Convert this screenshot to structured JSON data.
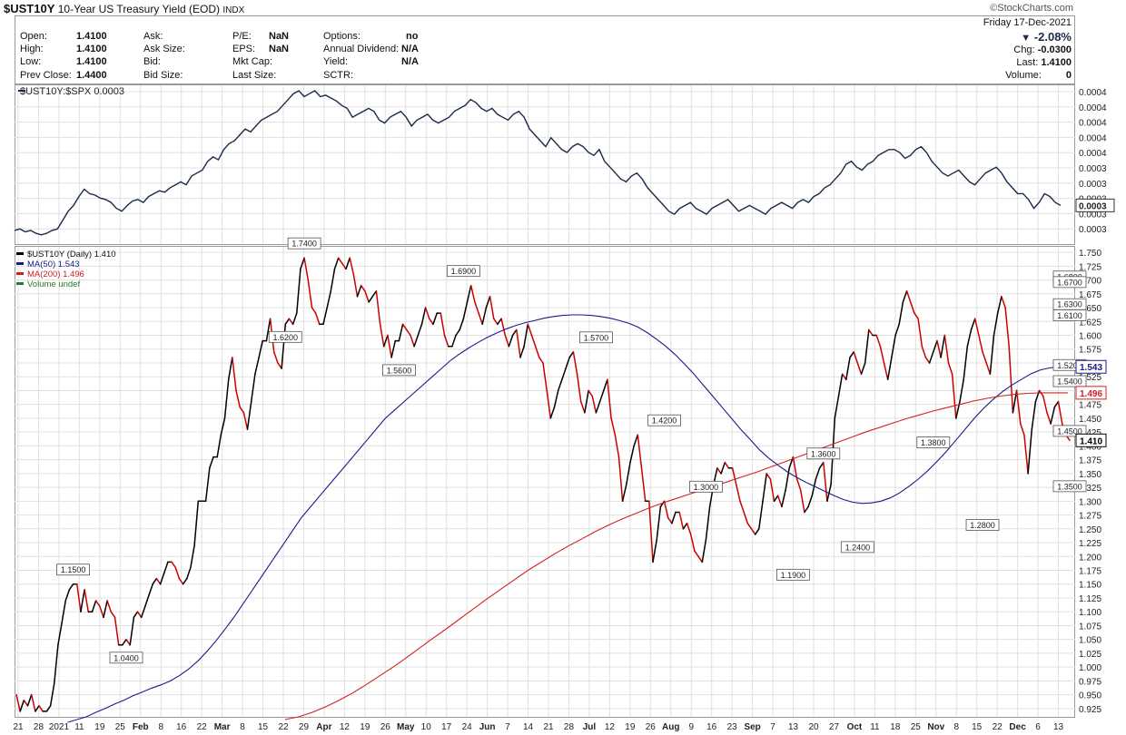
{
  "header": {
    "symbol": "$UST10Y",
    "name": "10-Year US Treasury Yield (EOD)",
    "exchange": "INDX",
    "brand": "©StockCharts.com",
    "date": "Friday  17-Dec-2021",
    "change_pct": "-2.08%",
    "chg_label": "Chg:",
    "chg_value": "-0.0300",
    "last_label": "Last:",
    "last_value": "1.4100",
    "volume_label": "Volume:",
    "volume_value": "0"
  },
  "quote": {
    "open_label": "Open:",
    "open": "1.4100",
    "high_label": "High:",
    "high": "1.4100",
    "low_label": "Low:",
    "low": "1.4100",
    "prev_label": "Prev Close:",
    "prev": "1.4400",
    "ask_label": "Ask:",
    "ask": "",
    "asksize_label": "Ask Size:",
    "asksize": "",
    "bid_label": "Bid:",
    "bid": "",
    "bidsize_label": "Bid Size:",
    "bidsize": "",
    "pe_label": "P/E:",
    "pe": "NaN",
    "eps_label": "EPS:",
    "eps": "NaN",
    "mktcap_label": "Mkt Cap:",
    "mktcap": "",
    "lastsize_label": "Last Size:",
    "lastsize": "",
    "options_label": "Options:",
    "options": "no",
    "div_label": "Annual Dividend:",
    "div": "N/A",
    "yield_label": "Yield:",
    "yield": "N/A",
    "sctr_label": "SCTR:",
    "sctr": ""
  },
  "colors": {
    "up": "#000000",
    "down": "#cc0000",
    "ma50": "#1a1a8c",
    "ma200": "#d42020",
    "ratio": "#1a2a4a",
    "grid": "#e0e0e0"
  },
  "chart_data": [
    {
      "type": "line",
      "title": "$UST10Y:$SPX 0.0003",
      "ytick_labels": [
        "0.0004",
        "0.0004",
        "0.0004",
        "0.0004",
        "0.0004",
        "0.0003",
        "0.0003",
        "0.0003",
        "0.0003",
        "0.0003"
      ],
      "last_label": "0.0003",
      "shape": [
        0.05,
        0.06,
        0.04,
        0.05,
        0.03,
        0.02,
        0.03,
        0.05,
        0.06,
        0.12,
        0.18,
        0.22,
        0.28,
        0.33,
        0.3,
        0.29,
        0.27,
        0.26,
        0.24,
        0.2,
        0.18,
        0.22,
        0.25,
        0.26,
        0.24,
        0.28,
        0.3,
        0.32,
        0.31,
        0.34,
        0.36,
        0.38,
        0.36,
        0.42,
        0.44,
        0.46,
        0.52,
        0.55,
        0.53,
        0.6,
        0.64,
        0.66,
        0.7,
        0.74,
        0.72,
        0.76,
        0.8,
        0.82,
        0.84,
        0.86,
        0.9,
        0.94,
        0.98,
        1.0,
        0.96,
        0.98,
        1.0,
        0.96,
        0.97,
        0.95,
        0.93,
        0.9,
        0.88,
        0.82,
        0.84,
        0.86,
        0.88,
        0.86,
        0.8,
        0.78,
        0.82,
        0.84,
        0.86,
        0.82,
        0.76,
        0.8,
        0.82,
        0.84,
        0.8,
        0.78,
        0.8,
        0.82,
        0.86,
        0.88,
        0.9,
        0.94,
        0.92,
        0.88,
        0.86,
        0.88,
        0.84,
        0.82,
        0.8,
        0.84,
        0.86,
        0.82,
        0.74,
        0.7,
        0.66,
        0.62,
        0.68,
        0.64,
        0.6,
        0.58,
        0.62,
        0.64,
        0.62,
        0.58,
        0.56,
        0.6,
        0.52,
        0.48,
        0.44,
        0.4,
        0.38,
        0.42,
        0.44,
        0.4,
        0.34,
        0.3,
        0.26,
        0.22,
        0.18,
        0.16,
        0.2,
        0.22,
        0.24,
        0.2,
        0.18,
        0.16,
        0.2,
        0.22,
        0.24,
        0.26,
        0.22,
        0.18,
        0.2,
        0.22,
        0.2,
        0.18,
        0.16,
        0.2,
        0.22,
        0.24,
        0.22,
        0.2,
        0.24,
        0.26,
        0.24,
        0.28,
        0.3,
        0.34,
        0.36,
        0.4,
        0.44,
        0.5,
        0.52,
        0.48,
        0.46,
        0.5,
        0.52,
        0.56,
        0.58,
        0.6,
        0.6,
        0.58,
        0.54,
        0.56,
        0.6,
        0.62,
        0.58,
        0.52,
        0.48,
        0.44,
        0.42,
        0.44,
        0.46,
        0.42,
        0.38,
        0.36,
        0.4,
        0.44,
        0.46,
        0.48,
        0.44,
        0.38,
        0.34,
        0.3,
        0.3,
        0.26,
        0.2,
        0.24,
        0.3,
        0.28,
        0.24,
        0.22
      ],
      "xtick_labels": [
        "21",
        "28",
        "2021",
        "11",
        "19",
        "25",
        "Feb",
        "8",
        "16",
        "22",
        "Mar",
        "8",
        "15",
        "22",
        "29",
        "Apr",
        "12",
        "19",
        "26",
        "May",
        "10",
        "17",
        "24",
        "Jun",
        "7",
        "14",
        "21",
        "28",
        "Jul",
        "12",
        "19",
        "26",
        "Aug",
        "9",
        "16",
        "23",
        "Sep",
        "7",
        "13",
        "20",
        "27",
        "Oct",
        "11",
        "18",
        "25",
        "Nov",
        "8",
        "15",
        "22",
        "Dec",
        "6",
        "13"
      ]
    },
    {
      "type": "line",
      "title": "$UST10Y (Daily) 1.410",
      "ylim": [
        0.91,
        1.76
      ],
      "ytick_labels": [
        "1.750",
        "1.725",
        "1.700",
        "1.675",
        "1.650",
        "1.625",
        "1.600",
        "1.575",
        "1.550",
        "1.525",
        "1.500",
        "1.475",
        "1.450",
        "1.425",
        "1.400",
        "1.375",
        "1.350",
        "1.325",
        "1.300",
        "1.275",
        "1.250",
        "1.225",
        "1.200",
        "1.175",
        "1.150",
        "1.125",
        "1.100",
        "1.075",
        "1.050",
        "1.025",
        "1.000",
        "0.975",
        "0.950",
        "0.925"
      ],
      "yticks": [
        1.75,
        1.725,
        1.7,
        1.675,
        1.65,
        1.625,
        1.6,
        1.575,
        1.55,
        1.525,
        1.5,
        1.475,
        1.45,
        1.425,
        1.4,
        1.375,
        1.35,
        1.325,
        1.3,
        1.275,
        1.25,
        1.225,
        1.2,
        1.175,
        1.15,
        1.125,
        1.1,
        1.075,
        1.05,
        1.025,
        1.0,
        0.975,
        0.95,
        0.925
      ],
      "legend": [
        {
          "label": "$UST10Y (Daily) 1.410",
          "color": "#000000"
        },
        {
          "label": "MA(50) 1.543",
          "color": "#1a1a8c"
        },
        {
          "label": "MA(200) 1.496",
          "color": "#d42020"
        },
        {
          "label": "Volume undef",
          "color": "#2a7a2a"
        }
      ],
      "series": [
        {
          "name": "$UST10Y",
          "values": [
            0.95,
            0.92,
            0.94,
            0.93,
            0.95,
            0.92,
            0.93,
            0.92,
            0.92,
            0.93,
            0.97,
            1.04,
            1.08,
            1.12,
            1.14,
            1.15,
            1.15,
            1.1,
            1.14,
            1.1,
            1.1,
            1.12,
            1.11,
            1.09,
            1.12,
            1.1,
            1.09,
            1.04,
            1.04,
            1.05,
            1.04,
            1.09,
            1.1,
            1.09,
            1.11,
            1.13,
            1.15,
            1.16,
            1.15,
            1.17,
            1.19,
            1.19,
            1.18,
            1.16,
            1.15,
            1.16,
            1.18,
            1.22,
            1.3,
            1.3,
            1.3,
            1.36,
            1.38,
            1.38,
            1.42,
            1.45,
            1.52,
            1.56,
            1.5,
            1.47,
            1.46,
            1.43,
            1.48,
            1.53,
            1.56,
            1.59,
            1.59,
            1.63,
            1.57,
            1.55,
            1.54,
            1.62,
            1.63,
            1.62,
            1.64,
            1.72,
            1.74,
            1.7,
            1.65,
            1.64,
            1.62,
            1.62,
            1.65,
            1.68,
            1.72,
            1.74,
            1.73,
            1.72,
            1.74,
            1.71,
            1.67,
            1.69,
            1.68,
            1.66,
            1.67,
            1.68,
            1.62,
            1.58,
            1.6,
            1.56,
            1.59,
            1.59,
            1.62,
            1.61,
            1.6,
            1.58,
            1.6,
            1.62,
            1.65,
            1.63,
            1.62,
            1.64,
            1.64,
            1.6,
            1.58,
            1.58,
            1.6,
            1.61,
            1.63,
            1.66,
            1.69,
            1.66,
            1.64,
            1.62,
            1.65,
            1.67,
            1.63,
            1.62,
            1.63,
            1.6,
            1.58,
            1.6,
            1.61,
            1.56,
            1.58,
            1.62,
            1.6,
            1.58,
            1.56,
            1.55,
            1.5,
            1.45,
            1.47,
            1.5,
            1.52,
            1.54,
            1.56,
            1.57,
            1.53,
            1.48,
            1.46,
            1.5,
            1.49,
            1.46,
            1.48,
            1.5,
            1.52,
            1.45,
            1.42,
            1.38,
            1.3,
            1.33,
            1.37,
            1.4,
            1.42,
            1.36,
            1.3,
            1.3,
            1.19,
            1.23,
            1.29,
            1.3,
            1.27,
            1.26,
            1.28,
            1.28,
            1.25,
            1.26,
            1.24,
            1.21,
            1.2,
            1.19,
            1.23,
            1.29,
            1.33,
            1.36,
            1.35,
            1.37,
            1.36,
            1.36,
            1.33,
            1.3,
            1.28,
            1.26,
            1.25,
            1.24,
            1.25,
            1.3,
            1.35,
            1.34,
            1.3,
            1.31,
            1.29,
            1.32,
            1.36,
            1.38,
            1.34,
            1.32,
            1.28,
            1.29,
            1.31,
            1.34,
            1.36,
            1.37,
            1.3,
            1.33,
            1.45,
            1.49,
            1.53,
            1.52,
            1.56,
            1.57,
            1.55,
            1.53,
            1.55,
            1.61,
            1.6,
            1.6,
            1.58,
            1.55,
            1.52,
            1.56,
            1.6,
            1.62,
            1.66,
            1.68,
            1.66,
            1.64,
            1.63,
            1.58,
            1.56,
            1.55,
            1.57,
            1.59,
            1.56,
            1.6,
            1.55,
            1.53,
            1.45,
            1.48,
            1.52,
            1.58,
            1.61,
            1.63,
            1.6,
            1.57,
            1.55,
            1.53,
            1.6,
            1.64,
            1.67,
            1.65,
            1.58,
            1.46,
            1.5,
            1.44,
            1.42,
            1.35,
            1.43,
            1.48,
            1.5,
            1.49,
            1.46,
            1.44,
            1.47,
            1.48,
            1.44,
            1.42,
            1.41
          ]
        },
        {
          "name": "MA(50)",
          "values": [
            0.9,
            0.905,
            0.91,
            0.918,
            0.925,
            0.933,
            0.94,
            0.948,
            0.955,
            0.962,
            0.968,
            0.975,
            0.985,
            0.997,
            1.012,
            1.03,
            1.05,
            1.072,
            1.095,
            1.12,
            1.145,
            1.17,
            1.195,
            1.22,
            1.245,
            1.27,
            1.29,
            1.31,
            1.33,
            1.35,
            1.37,
            1.39,
            1.41,
            1.43,
            1.45,
            1.465,
            1.48,
            1.495,
            1.51,
            1.525,
            1.54,
            1.555,
            1.567,
            1.578,
            1.588,
            1.597,
            1.605,
            1.612,
            1.618,
            1.623,
            1.627,
            1.631,
            1.634,
            1.636,
            1.637,
            1.637,
            1.636,
            1.634,
            1.631,
            1.627,
            1.622,
            1.615,
            1.605,
            1.593,
            1.58,
            1.565,
            1.548,
            1.53,
            1.51,
            1.49,
            1.47,
            1.45,
            1.43,
            1.412,
            1.393,
            1.378,
            1.365,
            1.353,
            1.343,
            1.334,
            1.326,
            1.318,
            1.31,
            1.303,
            1.298,
            1.296,
            1.297,
            1.3,
            1.306,
            1.315,
            1.327,
            1.34,
            1.355,
            1.372,
            1.39,
            1.41,
            1.43,
            1.45,
            1.468,
            1.484,
            1.498,
            1.51,
            1.52,
            1.53,
            1.537,
            1.541,
            1.543,
            1.543
          ]
        },
        {
          "name": "MA(200)",
          "values": [
            0.905,
            0.91,
            0.918,
            0.928,
            0.94,
            0.953,
            0.968,
            0.984,
            1.0,
            1.017,
            1.035,
            1.053,
            1.07,
            1.088,
            1.106,
            1.124,
            1.141,
            1.158,
            1.175,
            1.19,
            1.205,
            1.219,
            1.232,
            1.245,
            1.257,
            1.268,
            1.278,
            1.288,
            1.297,
            1.305,
            1.313,
            1.321,
            1.329,
            1.337,
            1.345,
            1.353,
            1.362,
            1.371,
            1.38,
            1.389,
            1.398,
            1.407,
            1.416,
            1.425,
            1.433,
            1.441,
            1.449,
            1.456,
            1.463,
            1.469,
            1.475,
            1.481,
            1.486,
            1.49,
            1.493,
            1.495,
            1.496,
            1.496,
            1.496
          ]
        }
      ],
      "annotations": [
        "1.1500",
        "1.0400",
        "1.7400",
        "1.6200",
        "1.5600",
        "1.6900",
        "1.5700",
        "1.4200",
        "1.3000",
        "1.1900",
        "1.3600",
        "1.2400",
        "1.3800",
        "1.2800",
        "1.6100",
        "1.6800",
        "1.4500",
        "1.6300",
        "1.5400",
        "1.6700",
        "1.5200",
        "1.3500"
      ],
      "annotation_values": [
        1.15,
        1.04,
        1.74,
        1.62,
        1.56,
        1.69,
        1.57,
        1.42,
        1.3,
        1.19,
        1.36,
        1.24,
        1.38,
        1.28,
        1.61,
        1.68,
        1.45,
        1.63,
        1.54,
        1.67,
        1.52,
        1.35
      ],
      "annotation_index": [
        15,
        29,
        76,
        71,
        101,
        118,
        153,
        171,
        182,
        205,
        213,
        222,
        242,
        255,
        280,
        301,
        312,
        325,
        333,
        343,
        349,
        346
      ],
      "annotation_pos": [
        "above",
        "below",
        "above",
        "below",
        "below",
        "above",
        "above",
        "above",
        "above",
        "below",
        "above",
        "below",
        "above",
        "below",
        "above",
        "above",
        "below",
        "above",
        "below",
        "above",
        "above",
        "below"
      ],
      "last_labels": {
        "ma50": "1.543",
        "ma200": "1.496",
        "close": "1.410"
      }
    }
  ]
}
